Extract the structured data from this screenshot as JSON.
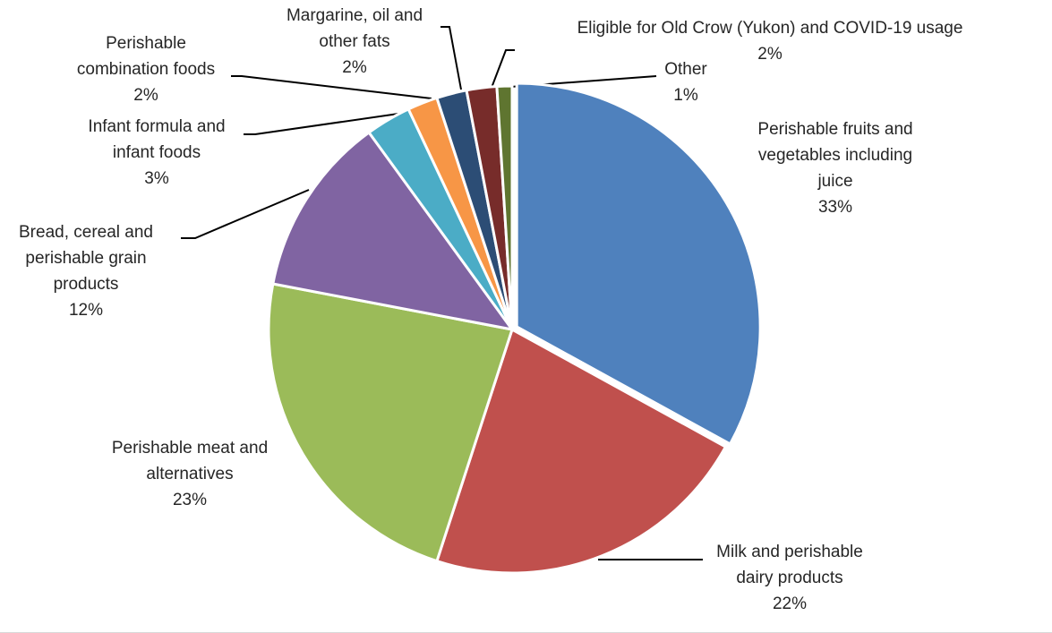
{
  "chart_data": {
    "type": "pie",
    "title": "",
    "slices": [
      {
        "name": "Perishable fruits and vegetables including juice",
        "lines": [
          "Perishable fruits and",
          "vegetables including",
          "juice"
        ],
        "value": 33,
        "label": "33%",
        "color": "#4F81BD"
      },
      {
        "name": "Milk and perishable dairy products",
        "lines": [
          "Milk and perishable",
          "dairy products"
        ],
        "value": 22,
        "label": "22%",
        "color": "#C0504D"
      },
      {
        "name": "Perishable meat and alternatives",
        "lines": [
          "Perishable meat and",
          "alternatives"
        ],
        "value": 23,
        "label": "23%",
        "color": "#9BBB59"
      },
      {
        "name": "Bread, cereal and perishable grain products",
        "lines": [
          "Bread, cereal and",
          "perishable grain",
          "products"
        ],
        "value": 12,
        "label": "12%",
        "color": "#8064A2"
      },
      {
        "name": "Infant formula and infant foods",
        "lines": [
          "Infant formula and",
          "infant foods"
        ],
        "value": 3,
        "label": "3%",
        "color": "#4BACC6"
      },
      {
        "name": "Perishable combination foods",
        "lines": [
          "Perishable",
          "combination foods"
        ],
        "value": 2,
        "label": "2%",
        "color": "#F79646"
      },
      {
        "name": "Margarine, oil and other fats",
        "lines": [
          "Margarine, oil and",
          "other fats"
        ],
        "value": 2,
        "label": "2%",
        "color": "#2C4D75"
      },
      {
        "name": "Eligible for Old Crow (Yukon) and COVID-19 usage",
        "lines": [
          "Eligible for Old Crow (Yukon) and COVID-19 usage"
        ],
        "value": 2,
        "label": "2%",
        "color": "#772C2A"
      },
      {
        "name": "Other",
        "lines": [
          "Other"
        ],
        "value": 1,
        "label": "1%",
        "color": "#5F7530"
      }
    ]
  }
}
